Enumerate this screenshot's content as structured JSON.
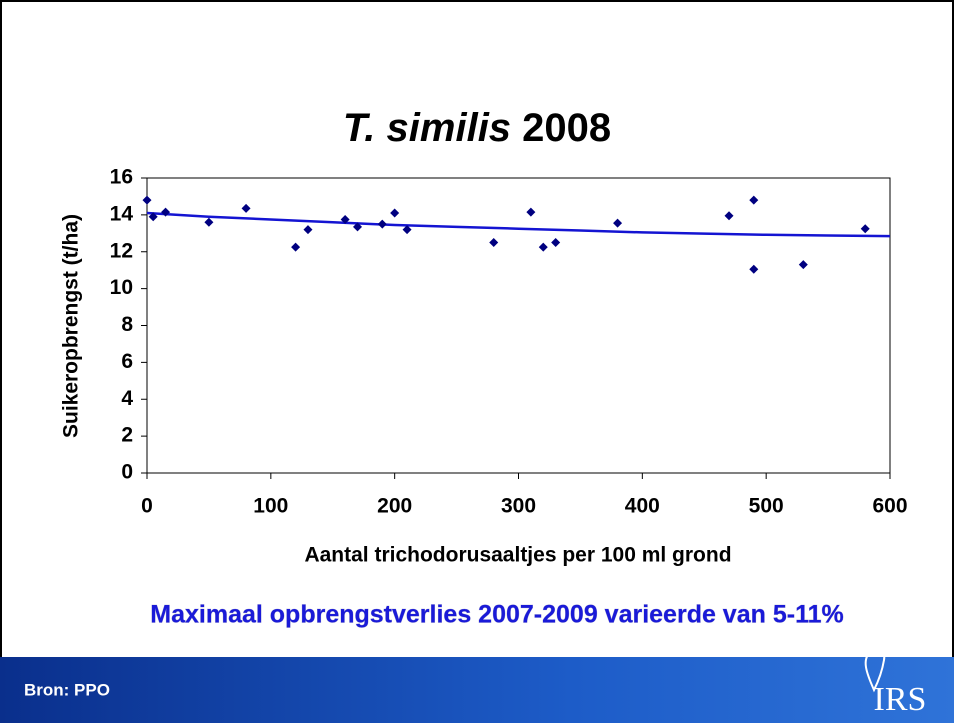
{
  "chart_data": {
    "type": "scatter",
    "title": [
      "T. similis",
      "2008"
    ],
    "xlabel": "Aantal trichodorusaaltjes per 100 ml grond",
    "ylabel": "Suikeropbrengst (t/ha)",
    "x": [
      0,
      5,
      15,
      50,
      80,
      120,
      130,
      160,
      170,
      190,
      200,
      210,
      280,
      310,
      320,
      330,
      380,
      470,
      490,
      490,
      530,
      580
    ],
    "values": [
      14.8,
      13.9,
      14.15,
      13.6,
      14.35,
      12.25,
      13.2,
      13.75,
      13.35,
      13.5,
      14.1,
      13.2,
      12.5,
      14.15,
      12.25,
      12.5,
      13.55,
      13.95,
      14.8,
      11.05,
      11.3,
      13.25
    ],
    "color": "#000080",
    "trendline": {
      "color": "#1414d2",
      "x": [
        0,
        50,
        100,
        150,
        200,
        250,
        300,
        350,
        400,
        450,
        500,
        550,
        600
      ],
      "values": [
        14.1,
        13.9,
        13.75,
        13.6,
        13.45,
        13.35,
        13.25,
        13.15,
        13.05,
        12.98,
        12.92,
        12.88,
        12.85
      ]
    },
    "xlim": [
      0,
      600
    ],
    "xticks": [
      0,
      100,
      200,
      300,
      400,
      500,
      600
    ],
    "ylim": [
      0,
      16
    ],
    "yticks": [
      0,
      2,
      4,
      6,
      8,
      10,
      12,
      14,
      16
    ],
    "grid": false
  },
  "caption": "Maximaal opbrengstverlies 2007-2009 varieerde van 5-11%",
  "source": "Bron: PPO",
  "logo": "IRS"
}
